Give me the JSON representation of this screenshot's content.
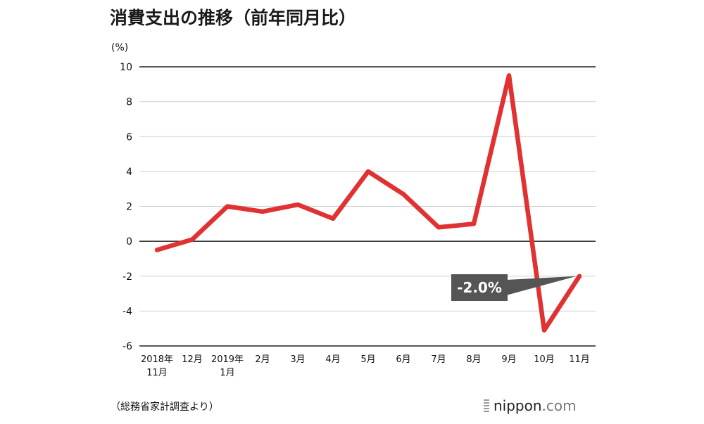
{
  "chart_data": {
    "type": "line",
    "title": "消費支出の推移（前年同月比）",
    "unit_label": "(%)",
    "categories": [
      [
        "2018年",
        "11月"
      ],
      [
        "12月"
      ],
      [
        "2019年",
        "1月"
      ],
      [
        "2月"
      ],
      [
        "3月"
      ],
      [
        "4月"
      ],
      [
        "5月"
      ],
      [
        "6月"
      ],
      [
        "7月"
      ],
      [
        "8月"
      ],
      [
        "9月"
      ],
      [
        "10月"
      ],
      [
        "11月"
      ]
    ],
    "values": [
      -0.5,
      0.1,
      2.0,
      1.7,
      2.1,
      1.3,
      4.0,
      2.7,
      0.8,
      1.0,
      9.5,
      -5.1,
      -2.0
    ],
    "ylim": [
      -6,
      10
    ],
    "yticks": [
      10,
      8,
      6,
      4,
      2,
      0,
      -2,
      -4,
      -6
    ],
    "grid": true,
    "line_color": "#e03232",
    "annotation": {
      "text": "-2.0%",
      "target_index": 12,
      "box_color": "#555555"
    }
  },
  "footer": {
    "source": "（総務省家計調査より）",
    "brand_name": "nippon",
    "brand_dot": ".",
    "brand_tld": "com"
  }
}
